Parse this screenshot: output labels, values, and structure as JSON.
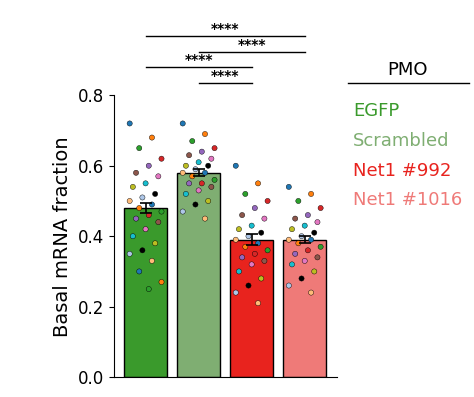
{
  "chart_data": {
    "type": "bar",
    "ylabel": "Basal mRNA fraction",
    "categories": [
      "EGFP",
      "Scrambled",
      "Net1 #992",
      "Net1 #1016"
    ],
    "values": [
      0.48,
      0.58,
      0.39,
      0.39
    ],
    "errors": [
      0.015,
      0.01,
      0.015,
      0.01
    ],
    "colors": [
      "#3a9a2c",
      "#7fae72",
      "#e8231e",
      "#ef7a78"
    ],
    "points": [
      [
        0.72,
        0.68,
        0.65,
        0.62,
        0.6,
        0.58,
        0.57,
        0.55,
        0.54,
        0.52,
        0.51,
        0.5,
        0.49,
        0.48,
        0.47,
        0.46,
        0.45,
        0.44,
        0.42,
        0.4,
        0.38,
        0.36,
        0.35,
        0.33,
        0.3,
        0.27,
        0.25
      ],
      [
        0.72,
        0.69,
        0.67,
        0.65,
        0.64,
        0.63,
        0.62,
        0.61,
        0.6,
        0.6,
        0.59,
        0.58,
        0.58,
        0.57,
        0.56,
        0.55,
        0.55,
        0.54,
        0.53,
        0.52,
        0.5,
        0.49,
        0.47,
        0.45
      ],
      [
        0.6,
        0.55,
        0.52,
        0.5,
        0.48,
        0.46,
        0.45,
        0.43,
        0.42,
        0.41,
        0.4,
        0.39,
        0.38,
        0.37,
        0.36,
        0.35,
        0.34,
        0.33,
        0.32,
        0.3,
        0.28,
        0.26,
        0.24,
        0.21
      ],
      [
        0.54,
        0.52,
        0.5,
        0.48,
        0.46,
        0.45,
        0.44,
        0.43,
        0.42,
        0.41,
        0.4,
        0.39,
        0.39,
        0.38,
        0.37,
        0.36,
        0.35,
        0.34,
        0.33,
        0.32,
        0.3,
        0.28,
        0.26,
        0.24
      ]
    ],
    "comparisons": [
      {
        "pair": [
          "EGFP",
          "Net1 #1016"
        ],
        "label": "****"
      },
      {
        "pair": [
          "Scrambled",
          "Net1 #1016"
        ],
        "label": "****"
      },
      {
        "pair": [
          "EGFP",
          "Net1 #992"
        ],
        "label": "****"
      },
      {
        "pair": [
          "Scrambled",
          "Net1 #992"
        ],
        "label": "****"
      }
    ],
    "legend_title": "PMO",
    "ylim": [
      0.0,
      0.8
    ],
    "yticks": [
      0.0,
      0.2,
      0.4,
      0.6,
      0.8
    ],
    "tick_labels": "y"
  }
}
